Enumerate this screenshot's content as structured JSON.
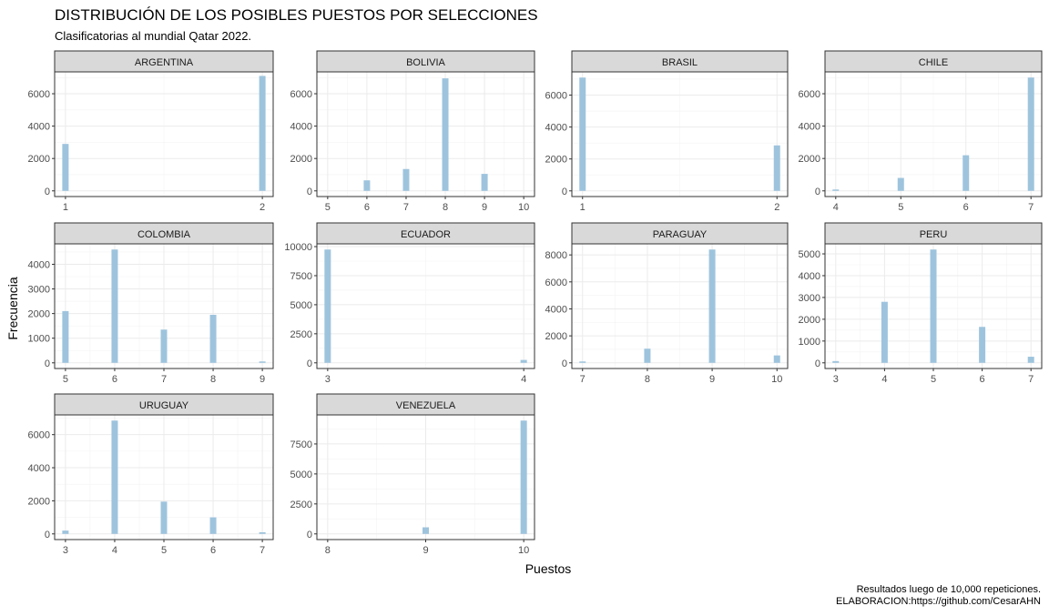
{
  "title": "DISTRIBUCIÓN DE LOS POSIBLES PUESTOS POR SELECCIONES",
  "subtitle": "Clasificatorias al mundial Qatar 2022.",
  "xlabel": "Puestos",
  "ylabel": "Frecuencia",
  "caption_line1": "Resultados luego de 10,000 repeticiones.",
  "caption_line2": "ELABORACION:https://github.com/CesarAHN",
  "colors": {
    "bar": "#9ec4dd",
    "strip": "#d9d9d9",
    "grid": "#ebebeb"
  },
  "chart_data": [
    {
      "type": "bar",
      "panel": "ARGENTINA",
      "xlim": [
        1,
        2
      ],
      "xticks": [
        1,
        2
      ],
      "ylim": [
        0,
        7000
      ],
      "yticks": [
        0,
        2000,
        4000,
        6000
      ],
      "points": [
        {
          "x": 1,
          "y": 2900
        },
        {
          "x": 2,
          "y": 7100
        }
      ]
    },
    {
      "type": "bar",
      "panel": "BOLIVIA",
      "xlim": [
        5,
        10
      ],
      "xticks": [
        5,
        6,
        7,
        8,
        9,
        10
      ],
      "ylim": [
        0,
        7000
      ],
      "yticks": [
        0,
        2000,
        4000,
        6000
      ],
      "points": [
        {
          "x": 6,
          "y": 650
        },
        {
          "x": 7,
          "y": 1350
        },
        {
          "x": 8,
          "y": 6950
        },
        {
          "x": 9,
          "y": 1050
        }
      ]
    },
    {
      "type": "bar",
      "panel": "BRASIL",
      "xlim": [
        1,
        2
      ],
      "xticks": [
        1,
        2
      ],
      "ylim": [
        0,
        7100
      ],
      "yticks": [
        0,
        2000,
        4000,
        6000
      ],
      "points": [
        {
          "x": 1,
          "y": 7100
        },
        {
          "x": 2,
          "y": 2850
        }
      ]
    },
    {
      "type": "bar",
      "panel": "CHILE",
      "xlim": [
        4,
        7
      ],
      "xticks": [
        4,
        5,
        6,
        7
      ],
      "ylim": [
        0,
        7000
      ],
      "yticks": [
        0,
        2000,
        4000,
        6000
      ],
      "points": [
        {
          "x": 4,
          "y": 50
        },
        {
          "x": 5,
          "y": 800
        },
        {
          "x": 6,
          "y": 2200
        },
        {
          "x": 7,
          "y": 7000
        }
      ]
    },
    {
      "type": "bar",
      "panel": "COLOMBIA",
      "xlim": [
        5,
        9
      ],
      "xticks": [
        5,
        6,
        7,
        8,
        9
      ],
      "ylim": [
        0,
        4600
      ],
      "yticks": [
        0,
        1000,
        2000,
        3000,
        4000
      ],
      "points": [
        {
          "x": 5,
          "y": 2100
        },
        {
          "x": 6,
          "y": 4600
        },
        {
          "x": 7,
          "y": 1350
        },
        {
          "x": 8,
          "y": 1950
        },
        {
          "x": 9,
          "y": 50
        }
      ]
    },
    {
      "type": "bar",
      "panel": "ECUADOR",
      "xlim": [
        3,
        4
      ],
      "xticks": [
        3,
        4
      ],
      "ylim": [
        0,
        9750
      ],
      "yticks": [
        0,
        2500,
        5000,
        7500,
        10000
      ],
      "points": [
        {
          "x": 3,
          "y": 9750
        },
        {
          "x": 4,
          "y": 250
        }
      ]
    },
    {
      "type": "bar",
      "panel": "PARAGUAY",
      "xlim": [
        7,
        10
      ],
      "xticks": [
        7,
        8,
        9,
        10
      ],
      "ylim": [
        0,
        8400
      ],
      "yticks": [
        0,
        2000,
        4000,
        6000,
        8000
      ],
      "points": [
        {
          "x": 7,
          "y": 20
        },
        {
          "x": 8,
          "y": 1050
        },
        {
          "x": 9,
          "y": 8400
        },
        {
          "x": 10,
          "y": 550
        }
      ]
    },
    {
      "type": "bar",
      "panel": "PERU",
      "xlim": [
        3,
        7
      ],
      "xticks": [
        3,
        4,
        5,
        6,
        7
      ],
      "ylim": [
        0,
        5200
      ],
      "yticks": [
        0,
        1000,
        2000,
        3000,
        4000,
        5000
      ],
      "points": [
        {
          "x": 3,
          "y": 80
        },
        {
          "x": 4,
          "y": 2800
        },
        {
          "x": 5,
          "y": 5200
        },
        {
          "x": 6,
          "y": 1650
        },
        {
          "x": 7,
          "y": 280
        }
      ]
    },
    {
      "type": "bar",
      "panel": "URUGUAY",
      "xlim": [
        3,
        7
      ],
      "xticks": [
        3,
        4,
        5,
        6,
        7
      ],
      "ylim": [
        0,
        6850
      ],
      "yticks": [
        0,
        2000,
        4000,
        6000
      ],
      "points": [
        {
          "x": 3,
          "y": 200
        },
        {
          "x": 4,
          "y": 6850
        },
        {
          "x": 5,
          "y": 1950
        },
        {
          "x": 6,
          "y": 1000
        },
        {
          "x": 7,
          "y": 100
        }
      ]
    },
    {
      "type": "bar",
      "panel": "VENEZUELA",
      "xlim": [
        8,
        10
      ],
      "xticks": [
        8,
        9,
        10
      ],
      "ylim": [
        0,
        9450
      ],
      "yticks": [
        0,
        2500,
        5000,
        7500
      ],
      "points": [
        {
          "x": 9,
          "y": 550
        },
        {
          "x": 10,
          "y": 9450
        }
      ]
    }
  ]
}
